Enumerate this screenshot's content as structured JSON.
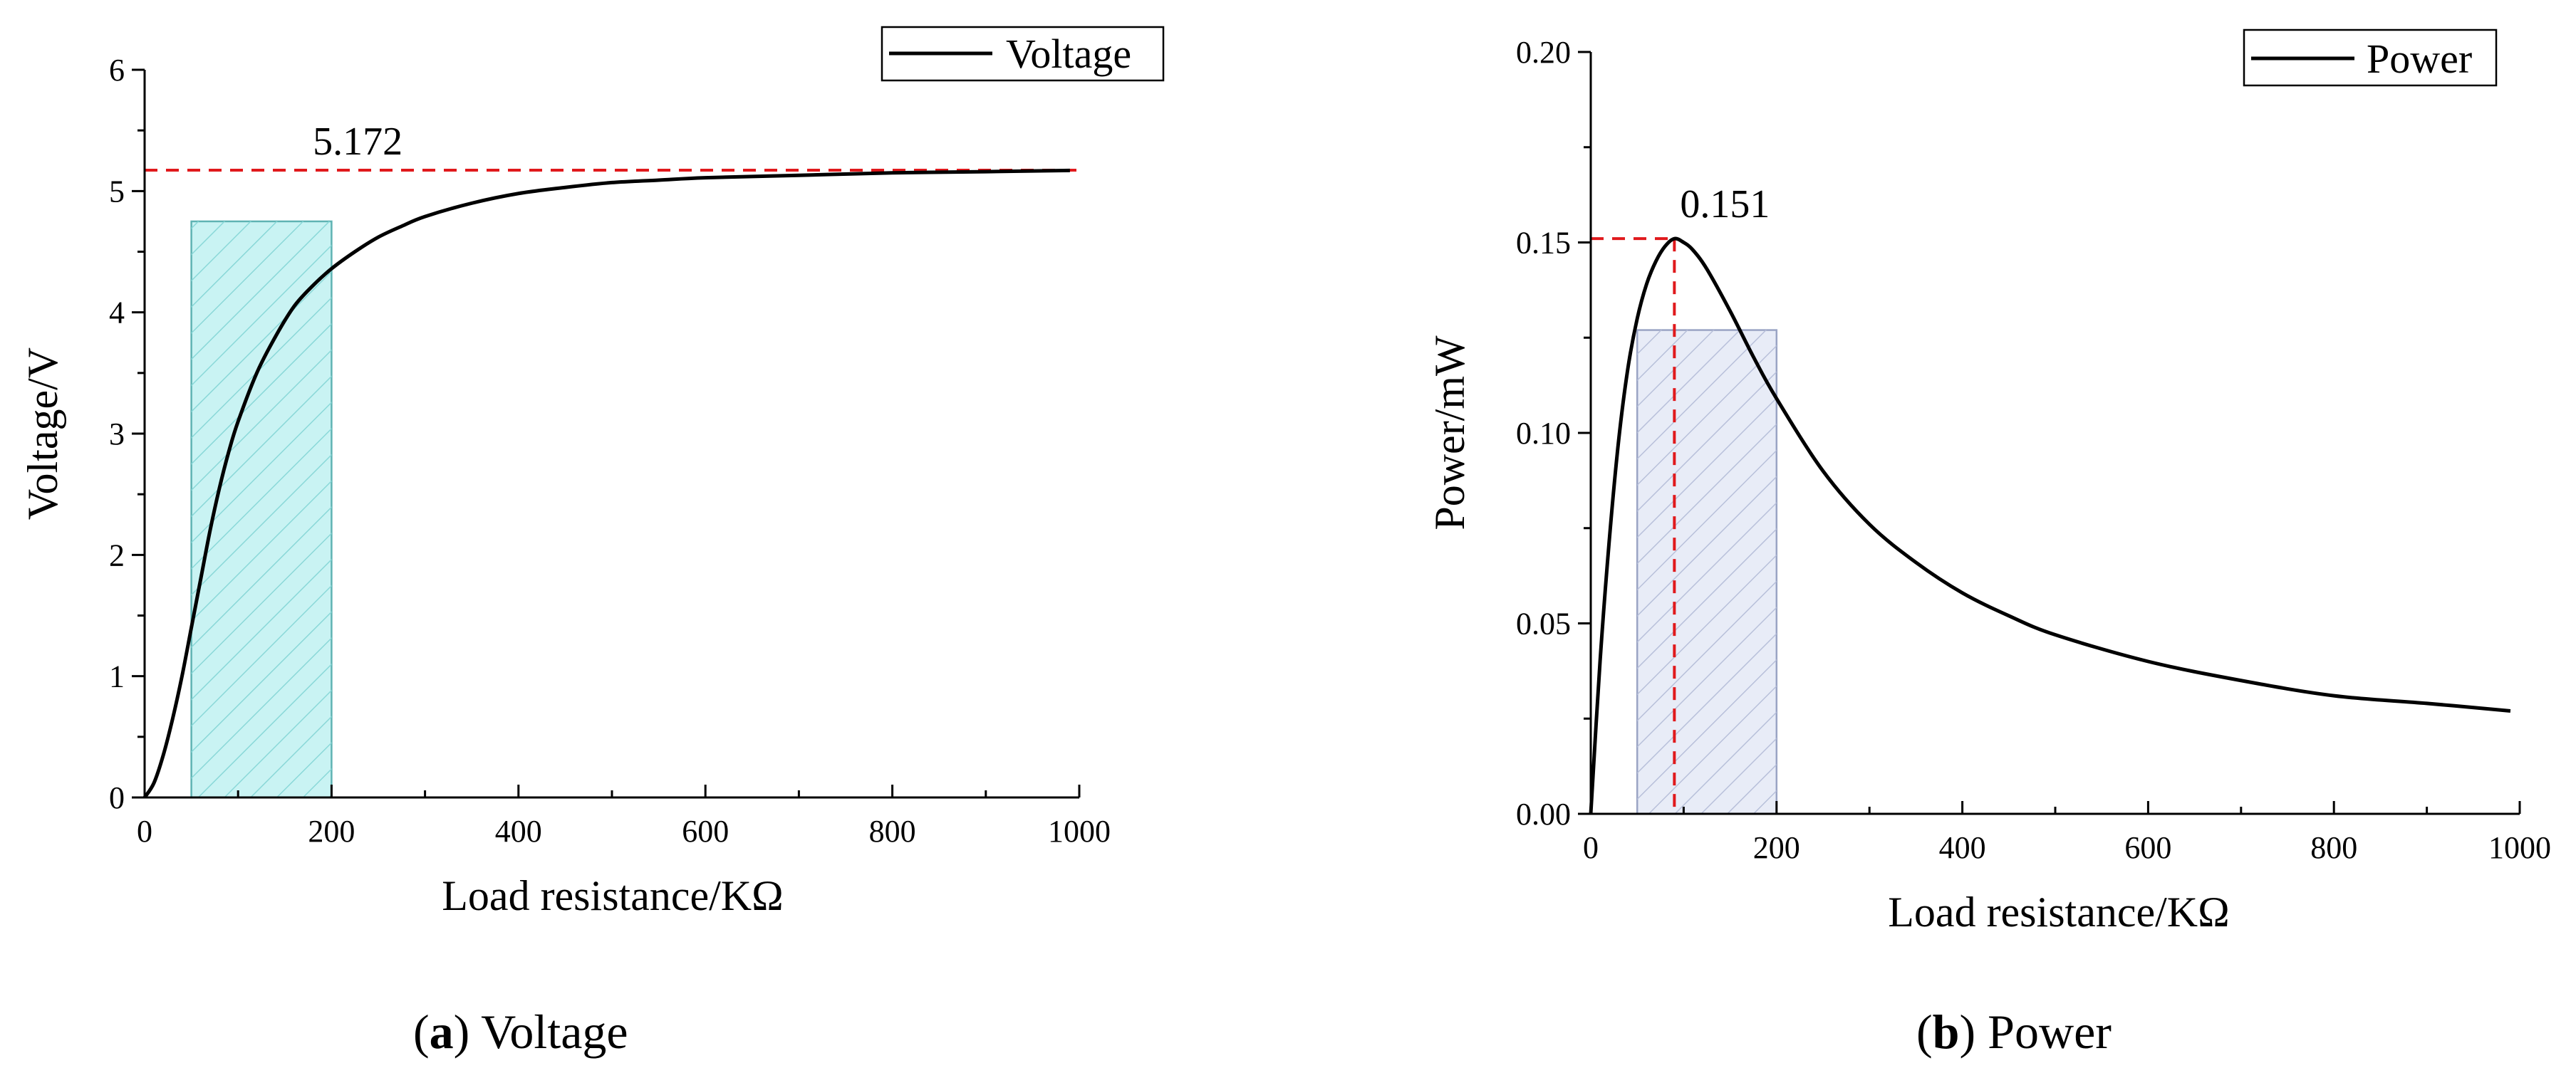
{
  "chart_data": [
    {
      "type": "line",
      "xlabel": "Load resistance/KΩ",
      "ylabel": "Voltage/V",
      "xlim": [
        0,
        1000
      ],
      "ylim": [
        0,
        6
      ],
      "xticks": [
        0,
        200,
        400,
        600,
        800,
        1000
      ],
      "yticks": [
        0,
        1,
        2,
        3,
        4,
        5,
        6
      ],
      "xtick_labels": [
        "0",
        "200",
        "400",
        "600",
        "800",
        "1000"
      ],
      "ytick_labels": [
        "0",
        "1",
        "2",
        "3",
        "4",
        "5",
        "6"
      ],
      "legend": {
        "label": "Voltage",
        "position": "top-right"
      },
      "series": [
        {
          "name": "Voltage",
          "x": [
            0,
            10,
            20,
            30,
            40,
            50,
            60,
            70,
            80,
            90,
            100,
            120,
            140,
            160,
            180,
            200,
            225,
            250,
            275,
            300,
            350,
            400,
            450,
            500,
            550,
            600,
            700,
            800,
            900,
            990
          ],
          "y": [
            0,
            0.12,
            0.35,
            0.65,
            1.0,
            1.4,
            1.8,
            2.2,
            2.55,
            2.85,
            3.1,
            3.5,
            3.8,
            4.05,
            4.22,
            4.36,
            4.5,
            4.62,
            4.71,
            4.79,
            4.9,
            4.98,
            5.03,
            5.07,
            5.09,
            5.11,
            5.13,
            5.15,
            5.16,
            5.17
          ]
        }
      ],
      "reference_line": {
        "y": 5.172,
        "label": "5.172",
        "color": "#e0191c"
      },
      "highlight_region": {
        "x": [
          50,
          200
        ],
        "y": [
          0,
          4.75
        ],
        "fill": "#c9f3f3",
        "stroke": "#5fb3b3",
        "hatch": "#8ad8d8"
      },
      "caption": {
        "letter": "a",
        "text": "Voltage"
      }
    },
    {
      "type": "line",
      "xlabel": "Load resistance/KΩ",
      "ylabel": "Power/mW",
      "xlim": [
        0,
        1000
      ],
      "ylim": [
        0,
        0.2
      ],
      "xticks": [
        0,
        200,
        400,
        600,
        800,
        1000
      ],
      "yticks": [
        0,
        0.05,
        0.1,
        0.15,
        0.2
      ],
      "xtick_labels": [
        "0",
        "200",
        "400",
        "600",
        "800",
        "1000"
      ],
      "ytick_labels": [
        "0.00",
        "0.05",
        "0.10",
        "0.15",
        "0.20"
      ],
      "legend": {
        "label": "Power",
        "position": "top-right"
      },
      "series": [
        {
          "name": "Power",
          "x": [
            0,
            10,
            20,
            30,
            40,
            50,
            60,
            70,
            80,
            90,
            100,
            110,
            125,
            150,
            175,
            200,
            250,
            300,
            350,
            400,
            450,
            500,
            600,
            700,
            800,
            900,
            990
          ],
          "y": [
            0,
            0.04,
            0.072,
            0.098,
            0.117,
            0.13,
            0.139,
            0.145,
            0.149,
            0.151,
            0.15,
            0.148,
            0.143,
            0.132,
            0.12,
            0.109,
            0.09,
            0.076,
            0.066,
            0.058,
            0.052,
            0.047,
            0.04,
            0.035,
            0.031,
            0.029,
            0.027
          ]
        }
      ],
      "peak_marker": {
        "x": 90,
        "y": 0.151,
        "label": "0.151",
        "color": "#e0191c"
      },
      "highlight_region": {
        "x": [
          50,
          200
        ],
        "y": [
          0,
          0.127
        ],
        "fill": "#e8ecf7",
        "stroke": "#9aa4c4",
        "hatch": "#b8c0da"
      },
      "caption": {
        "letter": "b",
        "text": "Power"
      }
    }
  ]
}
